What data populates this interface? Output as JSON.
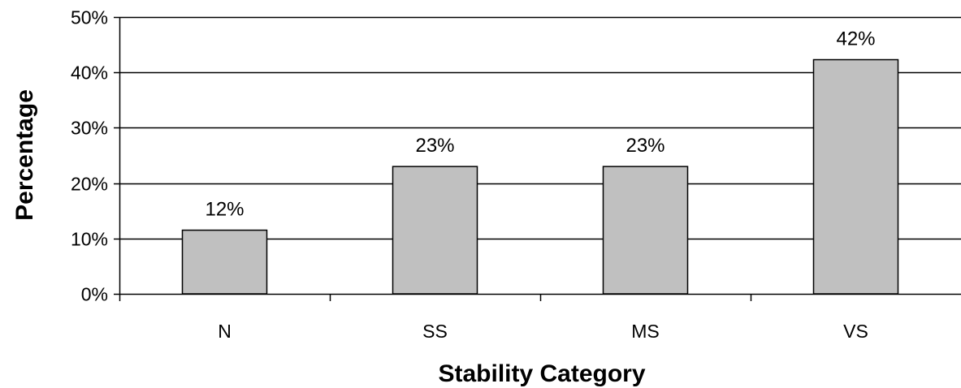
{
  "chart_data": {
    "type": "bar",
    "title": "",
    "xlabel": "Stability Category",
    "ylabel": "Percentage",
    "categories": [
      "N",
      "SS",
      "MS",
      "VS"
    ],
    "values": [
      11.5,
      23,
      23,
      42.3
    ],
    "data_labels": [
      "12%",
      "23%",
      "23%",
      "42%"
    ],
    "ylim": [
      0,
      50
    ],
    "yticks": [
      0,
      10,
      20,
      30,
      40,
      50
    ],
    "ytick_labels": [
      "0%",
      "10%",
      "20%",
      "30%",
      "40%",
      "50%"
    ],
    "grid": true,
    "legend": "none",
    "colors": {
      "bar_fill": "#c0c0c0",
      "bar_stroke": "#000000",
      "gridline": "#000000",
      "axis": "#000000",
      "background": "#ffffff"
    }
  }
}
